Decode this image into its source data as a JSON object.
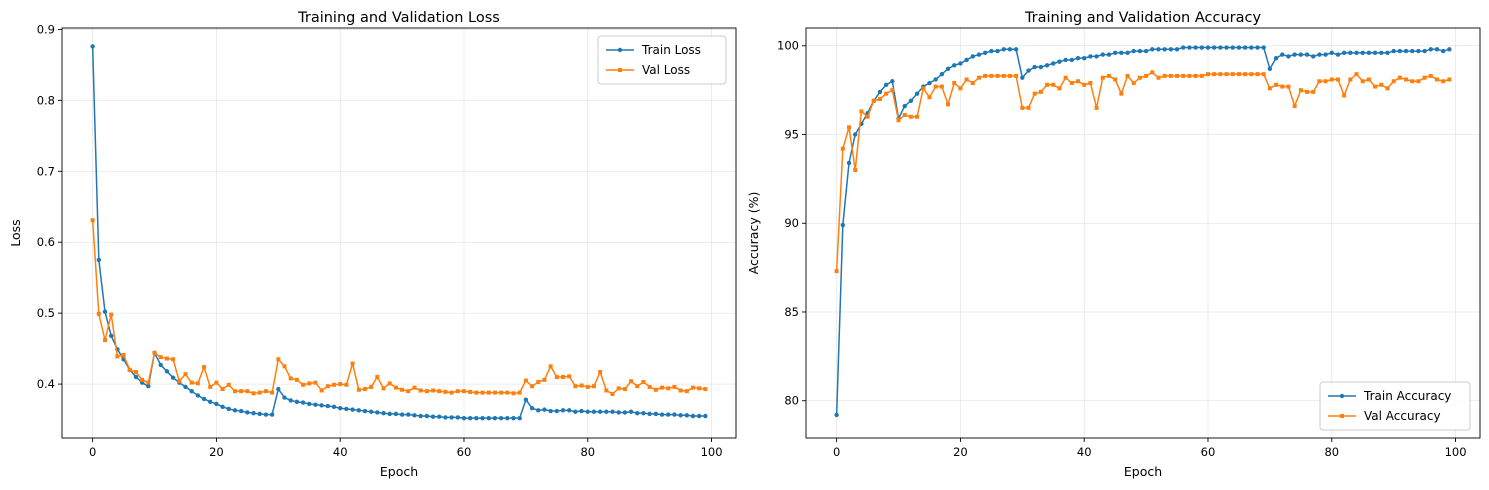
{
  "chart_data": [
    {
      "type": "line",
      "title": "Training and Validation Loss",
      "xlabel": "Epoch",
      "ylabel": "Loss",
      "xlim": [
        -4.95,
        103.95
      ],
      "ylim": [
        0.324,
        0.902
      ],
      "xticks": [
        0,
        20,
        40,
        60,
        80,
        100
      ],
      "yticks": [
        0.4,
        0.5,
        0.6,
        0.7,
        0.8,
        0.9
      ],
      "ytick_labels": [
        "0.4",
        "0.5",
        "0.6",
        "0.7",
        "0.8",
        "0.9"
      ],
      "grid": true,
      "legend_position": "upper right",
      "x": [
        0,
        1,
        2,
        3,
        4,
        5,
        6,
        7,
        8,
        9,
        10,
        11,
        12,
        13,
        14,
        15,
        16,
        17,
        18,
        19,
        20,
        21,
        22,
        23,
        24,
        25,
        26,
        27,
        28,
        29,
        30,
        31,
        32,
        33,
        34,
        35,
        36,
        37,
        38,
        39,
        40,
        41,
        42,
        43,
        44,
        45,
        46,
        47,
        48,
        49,
        50,
        51,
        52,
        53,
        54,
        55,
        56,
        57,
        58,
        59,
        60,
        61,
        62,
        63,
        64,
        65,
        66,
        67,
        68,
        69,
        70,
        71,
        72,
        73,
        74,
        75,
        76,
        77,
        78,
        79,
        80,
        81,
        82,
        83,
        84,
        85,
        86,
        87,
        88,
        89,
        90,
        91,
        92,
        93,
        94,
        95,
        96,
        97,
        98,
        99
      ],
      "series": [
        {
          "name": "Train Loss",
          "color": "#1f77b4",
          "marker": "circle",
          "values": [
            0.876,
            0.575,
            0.502,
            0.468,
            0.449,
            0.435,
            0.42,
            0.41,
            0.402,
            0.397,
            0.444,
            0.427,
            0.418,
            0.409,
            0.402,
            0.396,
            0.39,
            0.384,
            0.379,
            0.375,
            0.372,
            0.368,
            0.365,
            0.363,
            0.362,
            0.36,
            0.359,
            0.358,
            0.357,
            0.357,
            0.393,
            0.381,
            0.377,
            0.375,
            0.374,
            0.372,
            0.371,
            0.37,
            0.369,
            0.368,
            0.366,
            0.365,
            0.364,
            0.363,
            0.362,
            0.361,
            0.36,
            0.359,
            0.358,
            0.358,
            0.357,
            0.357,
            0.356,
            0.355,
            0.355,
            0.354,
            0.354,
            0.353,
            0.353,
            0.353,
            0.352,
            0.352,
            0.352,
            0.352,
            0.352,
            0.352,
            0.352,
            0.352,
            0.352,
            0.352,
            0.378,
            0.366,
            0.363,
            0.364,
            0.362,
            0.362,
            0.363,
            0.363,
            0.361,
            0.362,
            0.361,
            0.361,
            0.361,
            0.361,
            0.361,
            0.36,
            0.36,
            0.361,
            0.359,
            0.359,
            0.358,
            0.358,
            0.357,
            0.357,
            0.357,
            0.356,
            0.356,
            0.355,
            0.355,
            0.355
          ]
        },
        {
          "name": "Val Loss",
          "color": "#ff7f0e",
          "marker": "square",
          "values": [
            0.631,
            0.499,
            0.462,
            0.498,
            0.439,
            0.441,
            0.42,
            0.417,
            0.406,
            0.402,
            0.444,
            0.438,
            0.436,
            0.435,
            0.404,
            0.414,
            0.402,
            0.401,
            0.424,
            0.396,
            0.402,
            0.393,
            0.399,
            0.39,
            0.39,
            0.39,
            0.387,
            0.388,
            0.39,
            0.388,
            0.435,
            0.425,
            0.408,
            0.406,
            0.399,
            0.401,
            0.402,
            0.391,
            0.397,
            0.399,
            0.4,
            0.399,
            0.429,
            0.392,
            0.393,
            0.396,
            0.41,
            0.394,
            0.401,
            0.395,
            0.392,
            0.39,
            0.395,
            0.391,
            0.39,
            0.391,
            0.39,
            0.389,
            0.388,
            0.39,
            0.39,
            0.389,
            0.388,
            0.388,
            0.388,
            0.388,
            0.388,
            0.388,
            0.387,
            0.388,
            0.405,
            0.397,
            0.403,
            0.406,
            0.425,
            0.41,
            0.41,
            0.411,
            0.397,
            0.398,
            0.396,
            0.397,
            0.417,
            0.391,
            0.386,
            0.394,
            0.393,
            0.404,
            0.397,
            0.403,
            0.396,
            0.392,
            0.395,
            0.394,
            0.396,
            0.391,
            0.39,
            0.395,
            0.394,
            0.393
          ]
        }
      ]
    },
    {
      "type": "line",
      "title": "Training and Validation Accuracy",
      "xlabel": "Epoch",
      "ylabel": "Accuracy (%)",
      "xlim": [
        -4.95,
        103.95
      ],
      "ylim": [
        77.9,
        101.0
      ],
      "xticks": [
        0,
        20,
        40,
        60,
        80,
        100
      ],
      "yticks": [
        80,
        85,
        90,
        95,
        100
      ],
      "ytick_labels": [
        "80",
        "85",
        "90",
        "95",
        "100"
      ],
      "grid": true,
      "legend_position": "lower right",
      "x": [
        0,
        1,
        2,
        3,
        4,
        5,
        6,
        7,
        8,
        9,
        10,
        11,
        12,
        13,
        14,
        15,
        16,
        17,
        18,
        19,
        20,
        21,
        22,
        23,
        24,
        25,
        26,
        27,
        28,
        29,
        30,
        31,
        32,
        33,
        34,
        35,
        36,
        37,
        38,
        39,
        40,
        41,
        42,
        43,
        44,
        45,
        46,
        47,
        48,
        49,
        50,
        51,
        52,
        53,
        54,
        55,
        56,
        57,
        58,
        59,
        60,
        61,
        62,
        63,
        64,
        65,
        66,
        67,
        68,
        69,
        70,
        71,
        72,
        73,
        74,
        75,
        76,
        77,
        78,
        79,
        80,
        81,
        82,
        83,
        84,
        85,
        86,
        87,
        88,
        89,
        90,
        91,
        92,
        93,
        94,
        95,
        96,
        97,
        98,
        99
      ],
      "series": [
        {
          "name": "Train Accuracy",
          "color": "#1f77b4",
          "marker": "circle",
          "values": [
            79.2,
            89.9,
            93.4,
            95.0,
            95.6,
            96.2,
            96.9,
            97.4,
            97.8,
            98.0,
            95.9,
            96.6,
            96.9,
            97.3,
            97.7,
            97.9,
            98.1,
            98.4,
            98.7,
            98.9,
            99.0,
            99.2,
            99.4,
            99.5,
            99.6,
            99.7,
            99.7,
            99.8,
            99.8,
            99.8,
            98.2,
            98.6,
            98.8,
            98.8,
            98.9,
            99.0,
            99.1,
            99.2,
            99.2,
            99.3,
            99.3,
            99.4,
            99.4,
            99.5,
            99.5,
            99.6,
            99.6,
            99.6,
            99.7,
            99.7,
            99.7,
            99.8,
            99.8,
            99.8,
            99.8,
            99.8,
            99.9,
            99.9,
            99.9,
            99.9,
            99.9,
            99.9,
            99.9,
            99.9,
            99.9,
            99.9,
            99.9,
            99.9,
            99.9,
            99.9,
            98.7,
            99.3,
            99.5,
            99.4,
            99.5,
            99.5,
            99.5,
            99.4,
            99.5,
            99.5,
            99.6,
            99.5,
            99.6,
            99.6,
            99.6,
            99.6,
            99.6,
            99.6,
            99.6,
            99.6,
            99.7,
            99.7,
            99.7,
            99.7,
            99.7,
            99.7,
            99.8,
            99.8,
            99.7,
            99.8
          ]
        },
        {
          "name": "Val Accuracy",
          "color": "#ff7f0e",
          "marker": "square",
          "values": [
            87.3,
            94.2,
            95.4,
            93.0,
            96.3,
            96.0,
            96.9,
            97.0,
            97.3,
            97.5,
            95.8,
            96.1,
            96.0,
            96.0,
            97.6,
            97.1,
            97.7,
            97.7,
            96.7,
            97.9,
            97.6,
            98.1,
            97.9,
            98.2,
            98.3,
            98.3,
            98.3,
            98.3,
            98.3,
            98.3,
            96.5,
            96.5,
            97.3,
            97.4,
            97.8,
            97.8,
            97.6,
            98.2,
            97.9,
            98.0,
            97.8,
            97.9,
            96.5,
            98.2,
            98.3,
            98.1,
            97.3,
            98.3,
            97.9,
            98.2,
            98.3,
            98.5,
            98.2,
            98.3,
            98.3,
            98.3,
            98.3,
            98.3,
            98.3,
            98.3,
            98.4,
            98.4,
            98.4,
            98.4,
            98.4,
            98.4,
            98.4,
            98.4,
            98.4,
            98.4,
            97.6,
            97.8,
            97.7,
            97.7,
            96.6,
            97.5,
            97.4,
            97.4,
            98.0,
            98.0,
            98.1,
            98.1,
            97.2,
            98.1,
            98.4,
            98.0,
            98.1,
            97.7,
            97.8,
            97.6,
            98.0,
            98.2,
            98.1,
            98.0,
            98.0,
            98.2,
            98.3,
            98.1,
            98.0,
            98.1
          ]
        }
      ]
    }
  ]
}
